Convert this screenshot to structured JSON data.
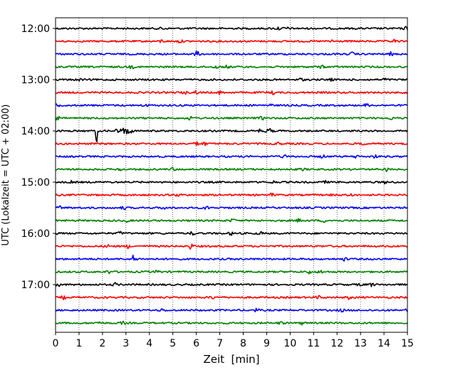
{
  "chart_data": {
    "type": "line",
    "title": "",
    "xlabel": "Zeit  [min]",
    "ylabel": "UTC (Lokalzeit = UTC + 02:00)",
    "xlim": [
      0,
      15
    ],
    "x_ticks": [
      "0",
      "1",
      "2",
      "3",
      "4",
      "5",
      "6",
      "7",
      "8",
      "9",
      "10",
      "11",
      "12",
      "13",
      "14",
      "15"
    ],
    "y_tick_labels": [
      "12:00",
      "13:00",
      "14:00",
      "15:00",
      "16:00",
      "17:00"
    ],
    "grid": "vertical dotted",
    "trace_interval_min": 15,
    "colors": [
      "#000000",
      "#ff0000",
      "#0000ff",
      "#008000"
    ],
    "traces": [
      {
        "start": "12:00",
        "color": "#000000"
      },
      {
        "start": "12:15",
        "color": "#ff0000"
      },
      {
        "start": "12:30",
        "color": "#0000ff"
      },
      {
        "start": "12:45",
        "color": "#008000"
      },
      {
        "start": "13:00",
        "color": "#000000"
      },
      {
        "start": "13:15",
        "color": "#ff0000"
      },
      {
        "start": "13:30",
        "color": "#0000ff"
      },
      {
        "start": "13:45",
        "color": "#008000"
      },
      {
        "start": "14:00",
        "color": "#000000"
      },
      {
        "start": "14:15",
        "color": "#ff0000"
      },
      {
        "start": "14:30",
        "color": "#0000ff"
      },
      {
        "start": "14:45",
        "color": "#008000"
      },
      {
        "start": "15:00",
        "color": "#000000"
      },
      {
        "start": "15:15",
        "color": "#ff0000"
      },
      {
        "start": "15:30",
        "color": "#0000ff"
      },
      {
        "start": "15:45",
        "color": "#008000"
      },
      {
        "start": "16:00",
        "color": "#000000"
      },
      {
        "start": "16:15",
        "color": "#ff0000"
      },
      {
        "start": "16:30",
        "color": "#0000ff"
      },
      {
        "start": "16:45",
        "color": "#008000"
      },
      {
        "start": "17:00",
        "color": "#000000"
      },
      {
        "start": "17:15",
        "color": "#ff0000"
      },
      {
        "start": "17:30",
        "color": "#0000ff"
      },
      {
        "start": "17:45",
        "color": "#008000"
      }
    ],
    "events": [
      {
        "trace": "14:00",
        "x": 1.75,
        "amplitude": "large"
      },
      {
        "trace": "14:00",
        "x": 3.0,
        "amplitude": "medium"
      }
    ]
  }
}
